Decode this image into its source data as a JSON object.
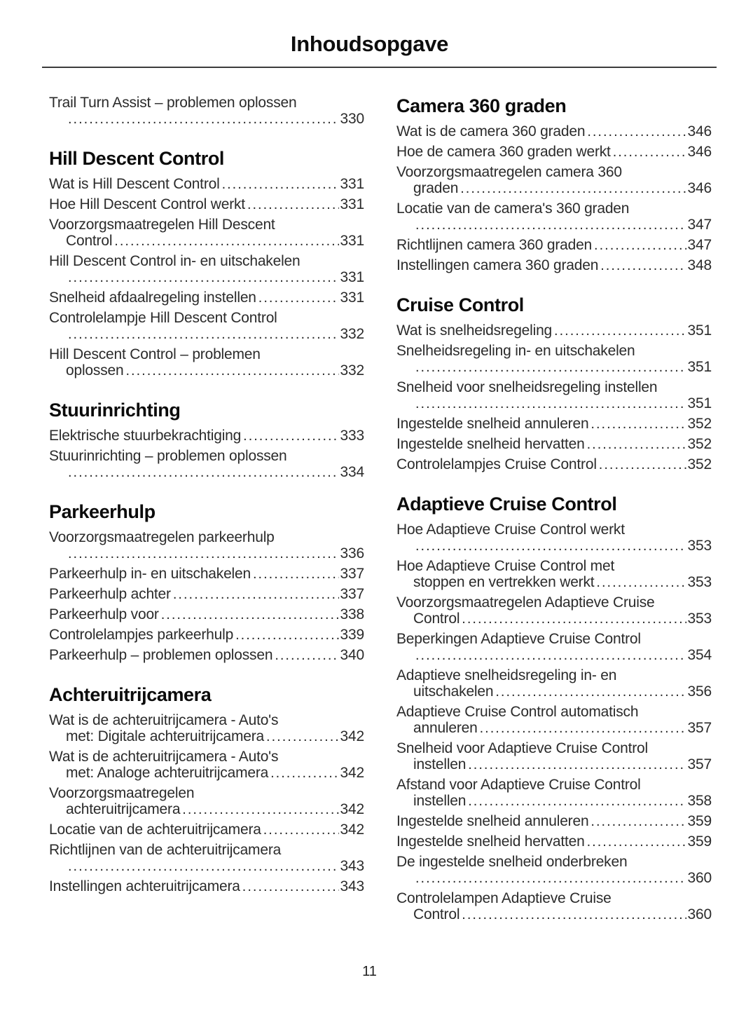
{
  "page": {
    "title": "Inhoudsopgave",
    "page_number": "11"
  },
  "columns": [
    {
      "blocks": [
        {
          "heading": null,
          "entries": [
            {
              "pre": [
                "Trail Turn Assist – problemen oplossen"
              ],
              "lead": "",
              "page": "330"
            }
          ]
        },
        {
          "heading": "Hill Descent Control",
          "entries": [
            {
              "pre": [],
              "lead": "Wat is Hill Descent Control",
              "page": "331"
            },
            {
              "pre": [],
              "lead": "Hoe Hill Descent Control werkt",
              "page": "331"
            },
            {
              "pre": [
                "Voorzorgsmaatregelen Hill Descent"
              ],
              "lead": "Control",
              "page": "331"
            },
            {
              "pre": [
                "Hill Descent Control in- en uitschakelen"
              ],
              "lead": "",
              "page": "331"
            },
            {
              "pre": [],
              "lead": "Snelheid afdaalregeling instellen",
              "page": "331"
            },
            {
              "pre": [
                "Controlelampje Hill Descent Control"
              ],
              "lead": "",
              "page": "332"
            },
            {
              "pre": [
                "Hill Descent Control – problemen"
              ],
              "lead": "oplossen",
              "page": "332"
            }
          ]
        },
        {
          "heading": "Stuurinrichting",
          "entries": [
            {
              "pre": [],
              "lead": "Elektrische stuurbekrachtiging",
              "page": "333"
            },
            {
              "pre": [
                "Stuurinrichting – problemen oplossen"
              ],
              "lead": "",
              "page": "334"
            }
          ]
        },
        {
          "heading": "Parkeerhulp",
          "entries": [
            {
              "pre": [
                "Voorzorgsmaatregelen parkeerhulp"
              ],
              "lead": "",
              "page": "336"
            },
            {
              "pre": [],
              "lead": "Parkeerhulp in- en uitschakelen",
              "page": "337"
            },
            {
              "pre": [],
              "lead": "Parkeerhulp achter",
              "page": "337"
            },
            {
              "pre": [],
              "lead": "Parkeerhulp voor",
              "page": "338"
            },
            {
              "pre": [],
              "lead": "Controlelampjes parkeerhulp",
              "page": "339"
            },
            {
              "pre": [],
              "lead": "Parkeerhulp – problemen oplossen",
              "page": "340"
            }
          ]
        },
        {
          "heading": "Achteruitrijcamera",
          "entries": [
            {
              "pre": [
                "Wat is de achteruitrijcamera - Auto's"
              ],
              "lead": "met: Digitale achteruitrijcamera",
              "page": "342"
            },
            {
              "pre": [
                "Wat is de achteruitrijcamera - Auto's"
              ],
              "lead": "met: Analoge achteruitrijcamera",
              "page": "342"
            },
            {
              "pre": [
                "Voorzorgsmaatregelen"
              ],
              "lead": "achteruitrijcamera",
              "page": "342"
            },
            {
              "pre": [],
              "lead": "Locatie van de achteruitrijcamera",
              "page": "342"
            },
            {
              "pre": [
                "Richtlijnen van de achteruitrijcamera"
              ],
              "lead": "",
              "page": "343"
            },
            {
              "pre": [],
              "lead": "Instellingen achteruitrijcamera",
              "page": "343"
            }
          ]
        }
      ]
    },
    {
      "blocks": [
        {
          "heading": "Camera 360 graden",
          "entries": [
            {
              "pre": [],
              "lead": "Wat is de camera 360 graden",
              "page": "346"
            },
            {
              "pre": [],
              "lead": "Hoe de camera 360 graden werkt",
              "page": "346"
            },
            {
              "pre": [
                "Voorzorgsmaatregelen camera 360"
              ],
              "lead": "graden",
              "page": "346"
            },
            {
              "pre": [
                "Locatie van de camera's 360 graden"
              ],
              "lead": "",
              "page": "347"
            },
            {
              "pre": [],
              "lead": "Richtlijnen camera 360 graden",
              "page": "347"
            },
            {
              "pre": [],
              "lead": "Instellingen camera 360 graden",
              "page": "348"
            }
          ]
        },
        {
          "heading": "Cruise Control",
          "entries": [
            {
              "pre": [],
              "lead": "Wat is snelheidsregeling",
              "page": "351"
            },
            {
              "pre": [
                "Snelheidsregeling in- en uitschakelen"
              ],
              "lead": "",
              "page": "351"
            },
            {
              "pre": [
                "Snelheid voor snelheidsregeling instellen"
              ],
              "lead": "",
              "page": "351"
            },
            {
              "pre": [],
              "lead": "Ingestelde snelheid annuleren",
              "page": "352"
            },
            {
              "pre": [],
              "lead": "Ingestelde snelheid hervatten",
              "page": "352"
            },
            {
              "pre": [],
              "lead": "Controlelampjes Cruise Control",
              "page": "352"
            }
          ]
        },
        {
          "heading": "Adaptieve Cruise Control",
          "entries": [
            {
              "pre": [
                "Hoe Adaptieve Cruise Control werkt"
              ],
              "lead": "",
              "page": "353"
            },
            {
              "pre": [
                "Hoe Adaptieve Cruise Control met"
              ],
              "lead": "stoppen en vertrekken werkt",
              "page": "353"
            },
            {
              "pre": [
                "Voorzorgsmaatregelen Adaptieve Cruise"
              ],
              "lead": "Control",
              "page": "353"
            },
            {
              "pre": [
                "Beperkingen Adaptieve Cruise Control"
              ],
              "lead": "",
              "page": "354"
            },
            {
              "pre": [
                "Adaptieve snelheidsregeling in- en"
              ],
              "lead": "uitschakelen",
              "page": "356"
            },
            {
              "pre": [
                "Adaptieve Cruise Control automatisch"
              ],
              "lead": "annuleren",
              "page": "357"
            },
            {
              "pre": [
                "Snelheid voor Adaptieve Cruise Control"
              ],
              "lead": "instellen",
              "page": "357"
            },
            {
              "pre": [
                "Afstand voor Adaptieve Cruise Control"
              ],
              "lead": "instellen",
              "page": "358"
            },
            {
              "pre": [],
              "lead": "Ingestelde snelheid annuleren",
              "page": "359"
            },
            {
              "pre": [],
              "lead": "Ingestelde snelheid hervatten",
              "page": "359"
            },
            {
              "pre": [
                "De ingestelde snelheid onderbreken"
              ],
              "lead": "",
              "page": "360"
            },
            {
              "pre": [
                "Controlelampen Adaptieve Cruise"
              ],
              "lead": "Control",
              "page": "360"
            }
          ]
        }
      ]
    }
  ]
}
